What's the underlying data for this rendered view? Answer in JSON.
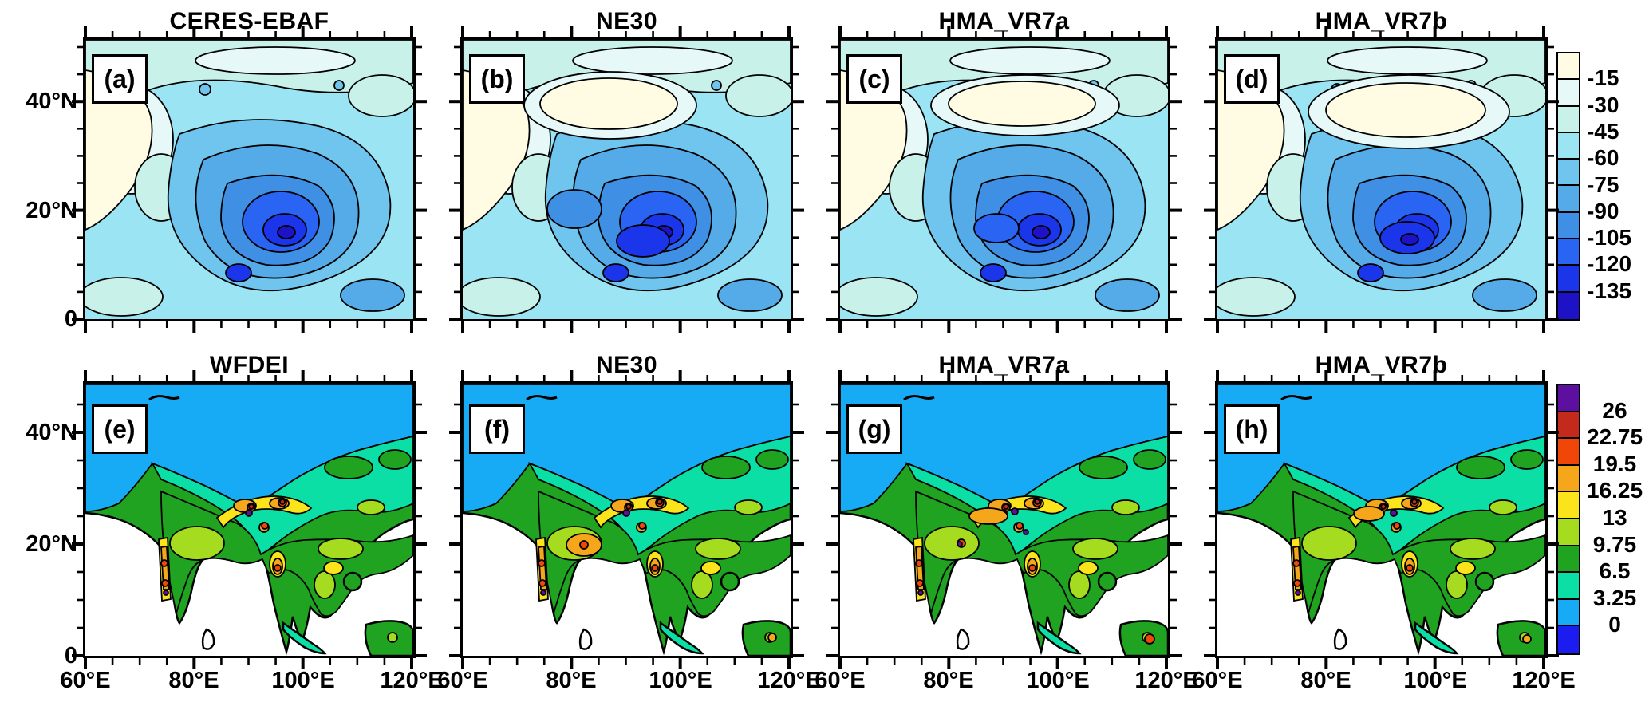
{
  "figure": {
    "kind": "multi-panel filled contour maps",
    "rows": 2,
    "cols": 4,
    "background": "#FFFFFF"
  },
  "panels": [
    {
      "letter": "(a)",
      "title": "CERES-EBAF"
    },
    {
      "letter": "(b)",
      "title": "NE30"
    },
    {
      "letter": "(c)",
      "title": "HMA_VR7a"
    },
    {
      "letter": "(d)",
      "title": "HMA_VR7b"
    },
    {
      "letter": "(e)",
      "title": "WFDEI"
    },
    {
      "letter": "(f)",
      "title": "NE30"
    },
    {
      "letter": "(g)",
      "title": "HMA_VR7a"
    },
    {
      "letter": "(h)",
      "title": "HMA_VR7b"
    }
  ],
  "axes": {
    "x_tick_labels": [
      "60°E",
      "80°E",
      "100°E",
      "120°E"
    ],
    "y_tick_labels": [
      "40°N",
      "20°N",
      "0"
    ]
  },
  "colorbars": {
    "top": {
      "labels": [
        "-15",
        "-30",
        "-45",
        "-60",
        "-75",
        "-90",
        "-105",
        "-120",
        "-135"
      ],
      "colors": [
        "#FFFCE3",
        "#E6F8F8",
        "#C8F1E9",
        "#9AE4F4",
        "#70C5EE",
        "#54ABE8",
        "#3F90E4",
        "#2A64F2",
        "#1B36EA",
        "#1D12C6"
      ]
    },
    "bottom": {
      "labels": [
        "26",
        "22.75",
        "19.5",
        "16.25",
        "13",
        "9.75",
        "6.5",
        "3.25",
        "0"
      ],
      "colors": [
        "#5D0F9F",
        "#C32A1C",
        "#F04708",
        "#F5A61A",
        "#FBE41C",
        "#A6DC20",
        "#1FA321",
        "#0BDFA6",
        "#17AAF5",
        "#1D1CF0"
      ]
    }
  },
  "chart_data": [
    {
      "type": "heatmap",
      "subtype": "filled-contour-map-row",
      "row": "top",
      "panels": [
        {
          "letter": "(a)",
          "title": "CERES-EBAF"
        },
        {
          "letter": "(b)",
          "title": "NE30"
        },
        {
          "letter": "(c)",
          "title": "HMA_VR7a"
        },
        {
          "letter": "(d)",
          "title": "HMA_VR7b"
        }
      ],
      "colorbar": {
        "tick_values": [
          -15,
          -30,
          -45,
          -60,
          -75,
          -90,
          -105,
          -120,
          -135
        ],
        "contour_interval": 15,
        "n_colors": 10,
        "orientation": "vertical-right",
        "colors_top_to_bottom": [
          "#FFFCE3",
          "#E6F8F8",
          "#C8F1E9",
          "#9AE4F4",
          "#70C5EE",
          "#54ABE8",
          "#3F90E4",
          "#2A64F2",
          "#1B36EA",
          "#1D12C6"
        ]
      },
      "x_axis": {
        "tick_values": [
          60,
          80,
          100,
          120
        ],
        "unit": "°E",
        "minor_step": 5,
        "range": [
          60,
          120
        ],
        "labels_shown": false
      },
      "y_axis": {
        "tick_values": [
          0,
          20,
          40
        ],
        "unit": "°N",
        "minor_step": 5,
        "range": [
          0,
          50
        ],
        "labels_shown": true
      },
      "visual_summary": "Blue-shaded negative field over South/East Asia; cream (near -15) over arid northwest, darkest blue cores (below -120) over Bay of Bengal / Southeast Tibet region"
    },
    {
      "type": "heatmap",
      "subtype": "filled-contour-map-row",
      "row": "bottom",
      "panels": [
        {
          "letter": "(e)",
          "title": "WFDEI"
        },
        {
          "letter": "(f)",
          "title": "NE30"
        },
        {
          "letter": "(g)",
          "title": "HMA_VR7a"
        },
        {
          "letter": "(h)",
          "title": "HMA_VR7b"
        }
      ],
      "colorbar": {
        "tick_values": [
          26,
          22.75,
          19.5,
          16.25,
          13,
          9.75,
          6.5,
          3.25,
          0
        ],
        "contour_interval": 3.25,
        "n_colors": 10,
        "orientation": "vertical-right",
        "colors_top_to_bottom": [
          "#5D0F9F",
          "#C32A1C",
          "#F04708",
          "#F5A61A",
          "#FBE41C",
          "#A6DC20",
          "#1FA321",
          "#0BDFA6",
          "#17AAF5",
          "#1D1CF0"
        ]
      },
      "x_axis": {
        "tick_values": [
          60,
          80,
          100,
          120
        ],
        "unit": "°E",
        "minor_step": 5,
        "range": [
          60,
          120
        ],
        "labels_shown": true
      },
      "y_axis": {
        "tick_values": [
          0,
          20,
          40
        ],
        "unit": "°N",
        "minor_step": 5,
        "range": [
          0,
          49
        ],
        "labels_shown": true
      },
      "visual_summary": "Land-only field (ocean white): blue low values over northern interior, green over India/Southeast Asia, yellow-orange-red-purple maxima along Himalayan foothills, Western Ghats and Myanmar coast"
    }
  ]
}
